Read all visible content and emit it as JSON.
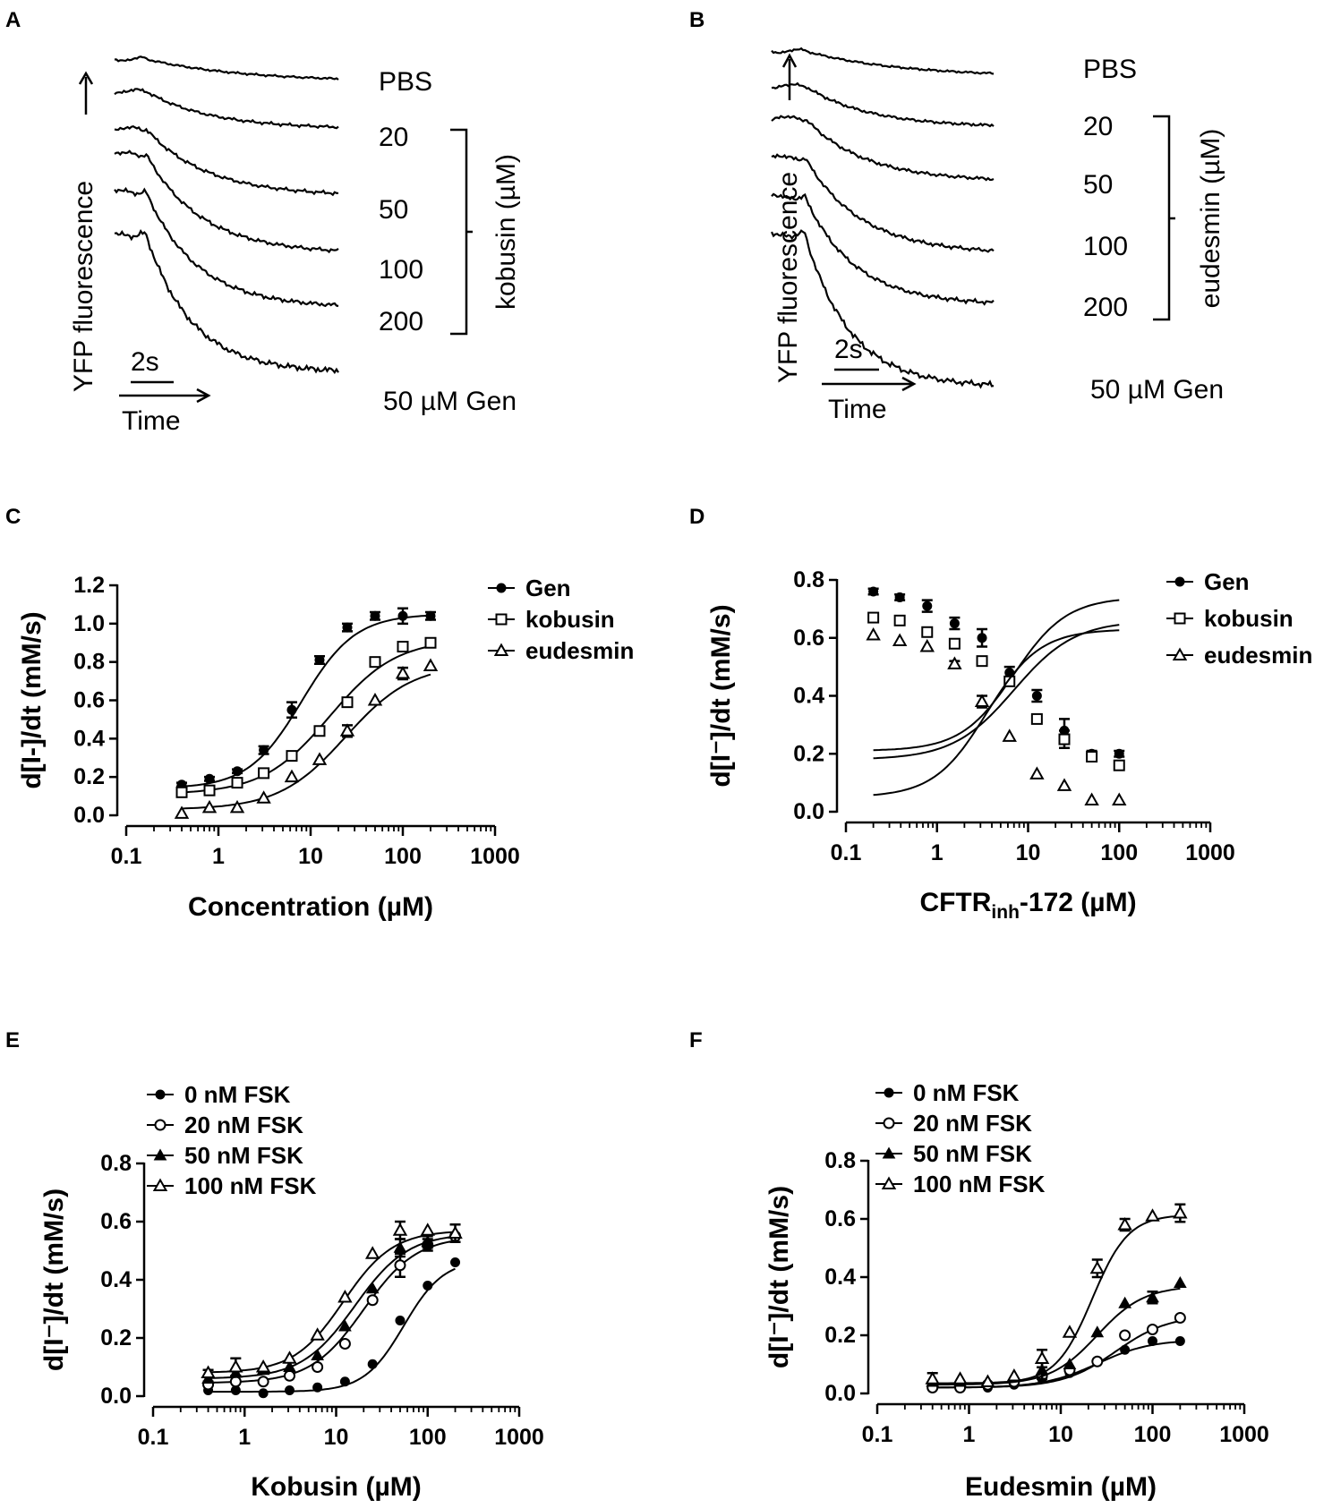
{
  "traces": [
    {
      "panel": "A",
      "ylabel": "YFP fluorescence",
      "time_label": "Time",
      "scale_label": "2s",
      "labels": [
        "PBS",
        "20",
        "50",
        "100",
        "200",
        "50 µM Gen"
      ],
      "bracket_label": "kobusin (µM)"
    },
    {
      "panel": "B",
      "ylabel": "YFP fluorescence",
      "time_label": "Time",
      "scale_label": "2s",
      "labels": [
        "PBS",
        "20",
        "50",
        "100",
        "200",
        "50 µM Gen"
      ],
      "bracket_label": "eudesmin (µM)"
    }
  ],
  "chart_data": [
    {
      "panel": "C",
      "type": "scatter",
      "xscale": "log",
      "xlim": [
        0.1,
        1000
      ],
      "ylim": [
        0,
        1.2
      ],
      "xticks": [
        "0.1",
        "1",
        "10",
        "100",
        "1000"
      ],
      "yticks": [
        "0.0",
        "0.2",
        "0.4",
        "0.6",
        "0.8",
        "1.0",
        "1.2"
      ],
      "xlabel": "Concentration (µM)",
      "ylabel": "d[I-]/dt (mM/s)",
      "legend_position": "top-right",
      "x": [
        0.4,
        0.8,
        1.6,
        3.1,
        6.25,
        12.5,
        25,
        50,
        100,
        200
      ],
      "series": [
        {
          "name": "Gen",
          "marker": "circle-filled",
          "values": [
            0.16,
            0.19,
            0.23,
            0.34,
            0.55,
            0.81,
            0.98,
            1.04,
            1.04,
            1.04
          ],
          "errors": [
            0.01,
            0.01,
            0.01,
            0.02,
            0.04,
            0.02,
            0.02,
            0.02,
            0.04,
            0.02
          ],
          "fit": {
            "bottom": 0.14,
            "top": 1.05,
            "ec50": 8.0,
            "hill": 1.5
          }
        },
        {
          "name": "kobusin",
          "marker": "square-open",
          "values": [
            0.12,
            0.13,
            0.17,
            0.22,
            0.31,
            0.44,
            0.59,
            0.8,
            0.88,
            0.9
          ],
          "errors": [
            0,
            0,
            0,
            0,
            0,
            0,
            0,
            0,
            0,
            0
          ],
          "fit": {
            "bottom": 0.11,
            "top": 0.92,
            "ec50": 16.0,
            "hill": 1.2
          }
        },
        {
          "name": "eudesmin",
          "marker": "triangle-open",
          "values": [
            0.01,
            0.04,
            0.04,
            0.09,
            0.2,
            0.29,
            0.44,
            0.6,
            0.74,
            0.78
          ],
          "errors": [
            0,
            0,
            0,
            0,
            0,
            0,
            0.03,
            0,
            0.03,
            0
          ],
          "fit": {
            "bottom": 0.03,
            "top": 0.79,
            "ec50": 24.0,
            "hill": 1.2
          }
        }
      ]
    },
    {
      "panel": "D",
      "type": "scatter",
      "xscale": "log",
      "xlim": [
        0.1,
        1000
      ],
      "ylim": [
        0,
        0.8
      ],
      "xticks": [
        "0.1",
        "1",
        "10",
        "100",
        "1000"
      ],
      "yticks": [
        "0.0",
        "0.2",
        "0.4",
        "0.6",
        "0.8"
      ],
      "xlabel_main": "CFTR",
      "xlabel_sub": "inh",
      "xlabel_rest": "-172 (µM)",
      "ylabel": "d[I⁻]/dt (mM/s)",
      "legend_position": "top-right",
      "x": [
        0.2,
        0.39,
        0.78,
        1.56,
        3.12,
        6.25,
        12.5,
        25,
        50,
        100
      ],
      "series": [
        {
          "name": "Gen",
          "marker": "circle-filled",
          "values": [
            0.76,
            0.74,
            0.71,
            0.65,
            0.6,
            0.48,
            0.4,
            0.28,
            0.2,
            0.2
          ],
          "errors": [
            0.01,
            0.01,
            0.02,
            0.02,
            0.03,
            0.02,
            0.02,
            0.04,
            0.01,
            0.01
          ],
          "fit": {
            "bottom": 0.21,
            "top": 0.74,
            "ec50": 7.0,
            "hill": 1.5
          }
        },
        {
          "name": "kobusin",
          "marker": "square-open",
          "values": [
            0.67,
            0.66,
            0.62,
            0.58,
            0.52,
            0.45,
            0.32,
            0.25,
            0.19,
            0.16
          ],
          "errors": [
            0,
            0,
            0,
            0,
            0,
            0,
            0,
            0.03,
            0,
            0
          ],
          "fit": {
            "bottom": 0.18,
            "top": 0.66,
            "ec50": 7.0,
            "hill": 1.3
          }
        },
        {
          "name": "eudesmin",
          "marker": "triangle-open",
          "values": [
            0.61,
            0.59,
            0.57,
            0.51,
            0.38,
            0.26,
            0.13,
            0.09,
            0.04,
            0.04
          ],
          "errors": [
            0,
            0,
            0,
            0.01,
            0.02,
            0,
            0,
            0,
            0,
            0
          ],
          "fit": {
            "bottom": 0.05,
            "top": 0.63,
            "ec50": 3.5,
            "hill": 1.5
          }
        }
      ]
    },
    {
      "panel": "E",
      "type": "scatter",
      "xscale": "log",
      "xlim": [
        0.1,
        1000
      ],
      "ylim": [
        0,
        0.8
      ],
      "xticks": [
        "0.1",
        "1",
        "10",
        "100",
        "1000"
      ],
      "yticks": [
        "0.0",
        "0.2",
        "0.4",
        "0.6",
        "0.8"
      ],
      "xlabel": "Kobusin (µM)",
      "ylabel": "d[I⁻]/dt (mM/s)",
      "legend_position": "top-left",
      "x": [
        0.4,
        0.8,
        1.6,
        3.1,
        6.25,
        12.5,
        25,
        50,
        100,
        200
      ],
      "series": [
        {
          "name": "0 nM FSK",
          "marker": "circle-filled",
          "values": [
            0.02,
            0.02,
            0.01,
            0.02,
            0.03,
            0.05,
            0.11,
            0.26,
            0.38,
            0.46
          ],
          "errors": [
            0,
            0,
            0,
            0,
            0,
            0,
            0,
            0,
            0,
            0
          ],
          "fit": {
            "bottom": 0.015,
            "top": 0.47,
            "ec50": 55.0,
            "hill": 2.0
          }
        },
        {
          "name": "20 nM  FSK",
          "marker": "circle-open",
          "values": [
            0.04,
            0.05,
            0.05,
            0.07,
            0.1,
            0.18,
            0.33,
            0.45,
            0.52,
            0.55
          ],
          "errors": [
            0,
            0,
            0,
            0,
            0,
            0,
            0,
            0.04,
            0.02,
            0
          ],
          "fit": {
            "bottom": 0.045,
            "top": 0.55,
            "ec50": 20.0,
            "hill": 1.5
          }
        },
        {
          "name": "50 nM FSK",
          "marker": "triangle-filled",
          "values": [
            0.06,
            0.08,
            0.09,
            0.1,
            0.14,
            0.24,
            0.37,
            0.51,
            0.53,
            0.56
          ],
          "errors": [
            0.01,
            0.01,
            0,
            0,
            0,
            0,
            0,
            0.03,
            0.02,
            0.03
          ],
          "fit": {
            "bottom": 0.06,
            "top": 0.56,
            "ec50": 16.0,
            "hill": 1.5
          }
        },
        {
          "name": "100 nM  FSK",
          "marker": "triangle-open",
          "values": [
            0.08,
            0.1,
            0.1,
            0.13,
            0.21,
            0.34,
            0.49,
            0.57,
            0.57,
            0.56
          ],
          "errors": [
            0.01,
            0.03,
            0,
            0,
            0,
            0,
            0,
            0.03,
            0,
            0
          ],
          "fit": {
            "bottom": 0.08,
            "top": 0.57,
            "ec50": 12.0,
            "hill": 1.6
          }
        }
      ]
    },
    {
      "panel": "F",
      "type": "scatter",
      "xscale": "log",
      "xlim": [
        0.1,
        1000
      ],
      "ylim": [
        0,
        0.8
      ],
      "xticks": [
        "0.1",
        "1",
        "10",
        "100",
        "1000"
      ],
      "yticks": [
        "0.0",
        "0.2",
        "0.4",
        "0.6",
        "0.8"
      ],
      "xlabel": "Eudesmin (µM)",
      "ylabel": "d[I⁻]/dt (mM/s)",
      "legend_position": "top-left",
      "x": [
        0.4,
        0.8,
        1.6,
        3.1,
        6.25,
        12.5,
        25,
        50,
        100,
        200
      ],
      "series": [
        {
          "name": "0 nM FSK",
          "marker": "circle-filled",
          "values": [
            0.02,
            0.02,
            0.02,
            0.03,
            0.05,
            0.07,
            0.11,
            0.15,
            0.18,
            0.18
          ],
          "errors": [
            0,
            0,
            0,
            0,
            0,
            0,
            0,
            0,
            0,
            0
          ],
          "fit": {
            "bottom": 0.02,
            "top": 0.185,
            "ec50": 25.0,
            "hill": 1.5
          }
        },
        {
          "name": "20 nM  FSK",
          "marker": "circle-open",
          "values": [
            0.02,
            0.02,
            0.03,
            0.04,
            0.06,
            0.08,
            0.11,
            0.2,
            0.22,
            0.26
          ],
          "errors": [
            0,
            0,
            0,
            0,
            0,
            0,
            0,
            0,
            0,
            0
          ],
          "fit": {
            "bottom": 0.02,
            "top": 0.27,
            "ec50": 40.0,
            "hill": 1.5
          }
        },
        {
          "name": "50 nM FSK",
          "marker": "triangle-filled",
          "values": [
            0.04,
            0.04,
            0.04,
            0.06,
            0.08,
            0.1,
            0.21,
            0.31,
            0.33,
            0.38
          ],
          "errors": [
            0,
            0,
            0,
            0,
            0.03,
            0,
            0,
            0,
            0.02,
            0
          ],
          "fit": {
            "bottom": 0.03,
            "top": 0.37,
            "ec50": 25.0,
            "hill": 1.7
          }
        },
        {
          "name": "100 nM  FSK",
          "marker": "triangle-open",
          "values": [
            0.05,
            0.05,
            0.04,
            0.06,
            0.12,
            0.21,
            0.43,
            0.58,
            0.61,
            0.62
          ],
          "errors": [
            0.02,
            0,
            0,
            0,
            0.03,
            0,
            0.03,
            0.02,
            0,
            0.03
          ],
          "fit": {
            "bottom": 0.035,
            "top": 0.615,
            "ec50": 22.0,
            "hill": 2.2
          }
        }
      ]
    }
  ]
}
